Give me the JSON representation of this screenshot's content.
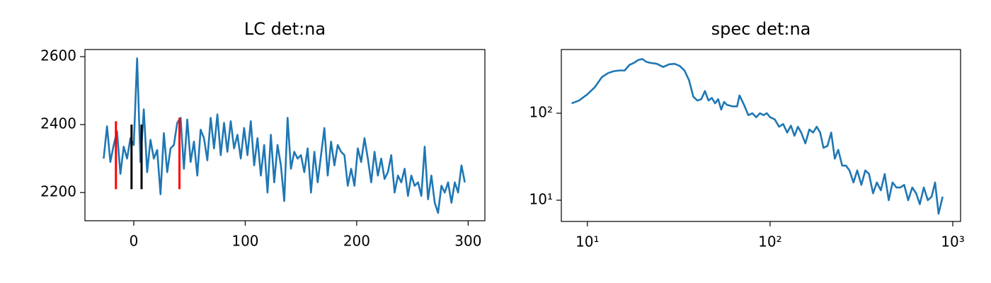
{
  "chart_data": [
    {
      "type": "line",
      "title": "LC det:na",
      "x": [
        -27,
        -24,
        -21,
        -18,
        -15,
        -12,
        -9,
        -6,
        -3,
        0,
        3,
        6,
        9,
        12,
        15,
        18,
        21,
        24,
        27,
        30,
        33,
        36,
        39,
        42,
        45,
        48,
        51,
        54,
        57,
        60,
        63,
        66,
        69,
        72,
        75,
        78,
        81,
        84,
        87,
        90,
        93,
        96,
        99,
        102,
        105,
        108,
        111,
        114,
        117,
        120,
        123,
        126,
        129,
        132,
        135,
        138,
        141,
        144,
        147,
        150,
        153,
        156,
        159,
        162,
        165,
        168,
        171,
        174,
        177,
        180,
        183,
        186,
        189,
        192,
        195,
        198,
        201,
        204,
        207,
        210,
        213,
        216,
        219,
        222,
        225,
        228,
        231,
        234,
        237,
        240,
        243,
        246,
        249,
        252,
        255,
        258,
        261,
        264,
        267,
        270,
        273,
        276,
        279,
        282,
        285,
        288,
        291,
        294,
        297
      ],
      "series": [
        {
          "color": "#1f77b4",
          "values": [
            2300,
            2395,
            2290,
            2340,
            2380,
            2255,
            2335,
            2300,
            2360,
            2340,
            2595,
            2290,
            2445,
            2260,
            2355,
            2300,
            2325,
            2195,
            2375,
            2260,
            2330,
            2340,
            2405,
            2420,
            2270,
            2415,
            2290,
            2350,
            2250,
            2385,
            2360,
            2295,
            2420,
            2330,
            2430,
            2310,
            2405,
            2320,
            2410,
            2330,
            2370,
            2300,
            2390,
            2310,
            2410,
            2280,
            2360,
            2250,
            2340,
            2200,
            2370,
            2230,
            2340,
            2280,
            2175,
            2420,
            2270,
            2320,
            2300,
            2310,
            2260,
            2330,
            2200,
            2320,
            2230,
            2310,
            2390,
            2250,
            2350,
            2280,
            2340,
            2320,
            2310,
            2220,
            2270,
            2220,
            2330,
            2290,
            2360,
            2300,
            2230,
            2320,
            2250,
            2300,
            2240,
            2260,
            2310,
            2200,
            2250,
            2230,
            2270,
            2190,
            2250,
            2220,
            2230,
            2190,
            2335,
            2180,
            2250,
            2170,
            2140,
            2220,
            2200,
            2230,
            2170,
            2230,
            2200,
            2280,
            2230
          ]
        }
      ],
      "vlines": [
        {
          "x": -16,
          "ymin": 2210,
          "ymax": 2410,
          "color": "#ff0000"
        },
        {
          "x": -2,
          "ymin": 2210,
          "ymax": 2400,
          "color": "#000000"
        },
        {
          "x": 7,
          "ymin": 2210,
          "ymax": 2400,
          "color": "#000000"
        },
        {
          "x": 41,
          "ymin": 2210,
          "ymax": 2420,
          "color": "#ff0000"
        }
      ],
      "xlim": [
        -43.8,
        315
      ],
      "ylim": [
        2117,
        2621
      ],
      "xticks": [
        0,
        100,
        200,
        300
      ],
      "yticks": [
        2200,
        2400,
        2600
      ]
    },
    {
      "type": "line",
      "title": "spec det:na",
      "xscale": "log",
      "yscale": "log",
      "x": [
        8.2,
        9,
        10,
        11,
        12,
        13,
        14,
        15,
        16,
        17,
        18,
        19,
        20,
        21,
        22,
        24,
        26,
        28,
        30,
        32,
        34,
        36,
        38,
        40,
        42,
        44,
        46,
        48,
        50,
        52,
        54,
        56,
        58,
        62,
        66,
        68,
        72,
        76,
        80,
        84,
        88,
        92,
        96,
        100,
        106,
        112,
        118,
        124,
        130,
        136,
        142,
        148,
        156,
        164,
        172,
        180,
        188,
        196,
        206,
        216,
        226,
        236,
        248,
        260,
        272,
        286,
        300,
        316,
        332,
        348,
        366,
        384,
        404,
        424,
        446,
        468,
        492,
        516,
        542,
        570,
        600,
        630,
        660,
        694,
        730,
        766,
        800,
        836,
        880
      ],
      "series": [
        {
          "color": "#1f77b4",
          "values": [
            130,
            140,
            165,
            200,
            260,
            290,
            305,
            310,
            310,
            360,
            380,
            410,
            420,
            390,
            380,
            370,
            340,
            365,
            370,
            350,
            310,
            240,
            155,
            140,
            145,
            180,
            140,
            150,
            130,
            145,
            110,
            135,
            125,
            120,
            120,
            160,
            125,
            95,
            100,
            90,
            100,
            95,
            100,
            90,
            85,
            70,
            75,
            60,
            72,
            55,
            70,
            60,
            45,
            65,
            60,
            70,
            60,
            40,
            42,
            60,
            30,
            38,
            25,
            25,
            22,
            16,
            22,
            15,
            22,
            20,
            12,
            16,
            13,
            20,
            10,
            16,
            14,
            14,
            15,
            10,
            14,
            12,
            9,
            14,
            10,
            11,
            16,
            7,
            11
          ]
        }
      ],
      "xlim": [
        7.2,
        1103
      ],
      "ylim": [
        5.7,
        540
      ],
      "xticks": [
        {
          "value": 10,
          "label": "10¹"
        },
        {
          "value": 100,
          "label": "10²"
        },
        {
          "value": 1000,
          "label": "10³"
        }
      ],
      "yticks": [
        {
          "value": 10,
          "label": "10¹"
        },
        {
          "value": 100,
          "label": "10²"
        }
      ]
    }
  ]
}
